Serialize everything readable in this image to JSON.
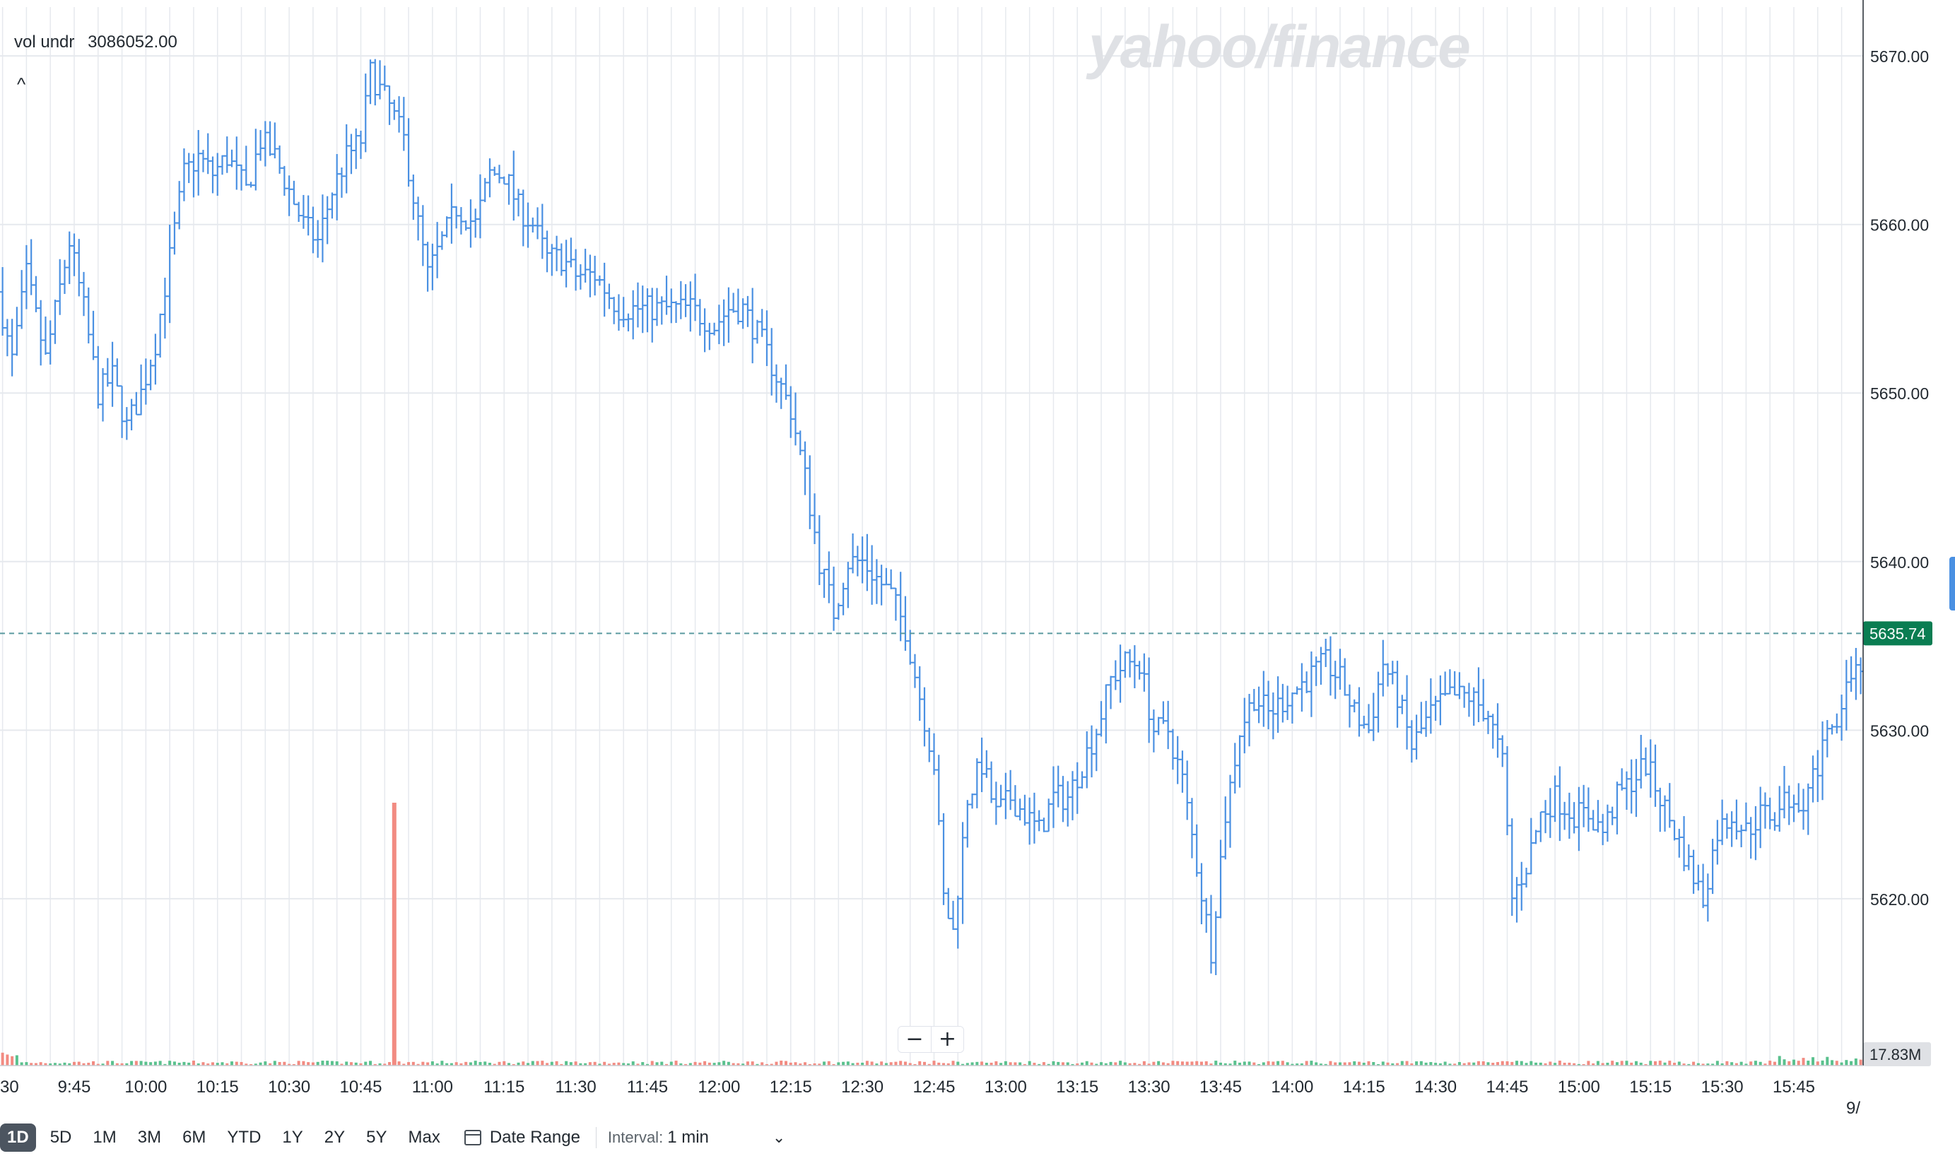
{
  "watermark": "yahoo/finance",
  "legend": {
    "label": "vol undr",
    "value": "3086052.00"
  },
  "collapse_glyph": "^",
  "zoom": {
    "minus": "−",
    "plus": "+"
  },
  "toolbar": {
    "ranges": [
      "1D",
      "5D",
      "1M",
      "3M",
      "6M",
      "YTD",
      "1Y",
      "2Y",
      "5Y",
      "Max"
    ],
    "active_range": "1D",
    "date_range_label": "Date Range",
    "interval_label": "Interval:",
    "interval_value": "1 min",
    "calendar_icon": "calendar-icon",
    "chevron_icon": "chevron-down-icon"
  },
  "colors": {
    "price_bar": "#4a90e2",
    "grid": "#e6e9ee",
    "last_price_line": "#5b9aa0",
    "last_price_badge": "#0a7d52",
    "volume_up": "#5ac18e",
    "volume_down": "#f28b82",
    "volume_badge": "#dfe1e5"
  },
  "chart_data": {
    "type": "ohlc",
    "x_ticks": [
      "30",
      "9:45",
      "10:00",
      "10:15",
      "10:30",
      "10:45",
      "11:00",
      "11:15",
      "11:30",
      "11:45",
      "12:00",
      "12:15",
      "12:30",
      "12:45",
      "13:00",
      "13:15",
      "13:30",
      "13:45",
      "14:00",
      "14:15",
      "14:30",
      "14:45",
      "15:00",
      "15:15",
      "15:30",
      "15:45"
    ],
    "x_tick_edge": "9/",
    "y_ticks": [
      "5620.00",
      "5630.00",
      "5640.00",
      "5650.00",
      "5660.00",
      "5670.00"
    ],
    "ylim": [
      5610.1,
      5672.9
    ],
    "last_price": 5635.74,
    "last_price_label": "5635.74",
    "volume_label": "17.83M",
    "volume_spike_time": "10:52",
    "price_path": [
      [
        "9:30",
        5656
      ],
      [
        "9:33",
        5652
      ],
      [
        "9:36",
        5657
      ],
      [
        "9:40",
        5652
      ],
      [
        "9:45",
        5659
      ],
      [
        "9:48",
        5655
      ],
      [
        "9:51",
        5650
      ],
      [
        "9:54",
        5651
      ],
      [
        "9:57",
        5648
      ],
      [
        "10:00",
        5650
      ],
      [
        "10:03",
        5653
      ],
      [
        "10:06",
        5658
      ],
      [
        "10:09",
        5663
      ],
      [
        "10:12",
        5664
      ],
      [
        "10:15",
        5663
      ],
      [
        "10:18",
        5664
      ],
      [
        "10:22",
        5662
      ],
      [
        "10:25",
        5665
      ],
      [
        "10:28",
        5664
      ],
      [
        "10:31",
        5662
      ],
      [
        "10:34",
        5660
      ],
      [
        "10:37",
        5659
      ],
      [
        "10:40",
        5662
      ],
      [
        "10:43",
        5664
      ],
      [
        "10:46",
        5665
      ],
      [
        "10:48",
        5669
      ],
      [
        "10:50",
        5668
      ],
      [
        "10:52",
        5667
      ],
      [
        "10:55",
        5665
      ],
      [
        "10:58",
        5660
      ],
      [
        "11:00",
        5657
      ],
      [
        "11:03",
        5659
      ],
      [
        "11:06",
        5661
      ],
      [
        "11:10",
        5660
      ],
      [
        "11:13",
        5663
      ],
      [
        "11:16",
        5663
      ],
      [
        "11:19",
        5661
      ],
      [
        "11:22",
        5660
      ],
      [
        "11:25",
        5658
      ],
      [
        "11:28",
        5658
      ],
      [
        "11:31",
        5657
      ],
      [
        "11:35",
        5657
      ],
      [
        "11:40",
        5655
      ],
      [
        "11:45",
        5655
      ],
      [
        "11:50",
        5655
      ],
      [
        "11:55",
        5655
      ],
      [
        "12:00",
        5654
      ],
      [
        "12:03",
        5655
      ],
      [
        "12:06",
        5655
      ],
      [
        "12:10",
        5653
      ],
      [
        "12:13",
        5651
      ],
      [
        "12:16",
        5649
      ],
      [
        "12:19",
        5645
      ],
      [
        "12:22",
        5640
      ],
      [
        "12:25",
        5637
      ],
      [
        "12:28",
        5640
      ],
      [
        "12:31",
        5640
      ],
      [
        "12:34",
        5639
      ],
      [
        "12:37",
        5638
      ],
      [
        "12:40",
        5636
      ],
      [
        "12:43",
        5632
      ],
      [
        "12:46",
        5628
      ],
      [
        "12:48",
        5620
      ],
      [
        "12:50",
        5618
      ],
      [
        "12:53",
        5626
      ],
      [
        "12:56",
        5628
      ],
      [
        "12:59",
        5625
      ],
      [
        "13:02",
        5626
      ],
      [
        "13:05",
        5625
      ],
      [
        "13:08",
        5624
      ],
      [
        "13:11",
        5626
      ],
      [
        "13:14",
        5626
      ],
      [
        "13:17",
        5628
      ],
      [
        "13:20",
        5630
      ],
      [
        "13:23",
        5633
      ],
      [
        "13:26",
        5634
      ],
      [
        "13:29",
        5634
      ],
      [
        "13:32",
        5630
      ],
      [
        "13:35",
        5630
      ],
      [
        "13:38",
        5627
      ],
      [
        "13:41",
        5622
      ],
      [
        "13:44",
        5617
      ],
      [
        "13:47",
        5625
      ],
      [
        "13:50",
        5630
      ],
      [
        "13:53",
        5632
      ],
      [
        "13:56",
        5631
      ],
      [
        "14:00",
        5632
      ],
      [
        "14:04",
        5633
      ],
      [
        "14:08",
        5634
      ],
      [
        "14:11",
        5633
      ],
      [
        "14:14",
        5631
      ],
      [
        "14:17",
        5630
      ],
      [
        "14:20",
        5634
      ],
      [
        "14:23",
        5632
      ],
      [
        "14:26",
        5629
      ],
      [
        "14:30",
        5631
      ],
      [
        "14:34",
        5632
      ],
      [
        "14:38",
        5632
      ],
      [
        "14:42",
        5631
      ],
      [
        "14:45",
        5628
      ],
      [
        "14:47",
        5620
      ],
      [
        "14:50",
        5622
      ],
      [
        "14:53",
        5625
      ],
      [
        "14:56",
        5626
      ],
      [
        "15:00",
        5625
      ],
      [
        "15:03",
        5625
      ],
      [
        "15:06",
        5624
      ],
      [
        "15:09",
        5626
      ],
      [
        "15:12",
        5627
      ],
      [
        "15:15",
        5628
      ],
      [
        "15:18",
        5626
      ],
      [
        "15:21",
        5624
      ],
      [
        "15:24",
        5622
      ],
      [
        "15:27",
        5620
      ],
      [
        "15:30",
        5624
      ],
      [
        "15:33",
        5625
      ],
      [
        "15:36",
        5624
      ],
      [
        "15:39",
        5625
      ],
      [
        "15:42",
        5625
      ],
      [
        "15:45",
        5626
      ],
      [
        "15:48",
        5626
      ],
      [
        "15:51",
        5628
      ],
      [
        "15:54",
        5630
      ],
      [
        "15:57",
        5633
      ],
      [
        "16:00",
        5634
      ]
    ]
  }
}
